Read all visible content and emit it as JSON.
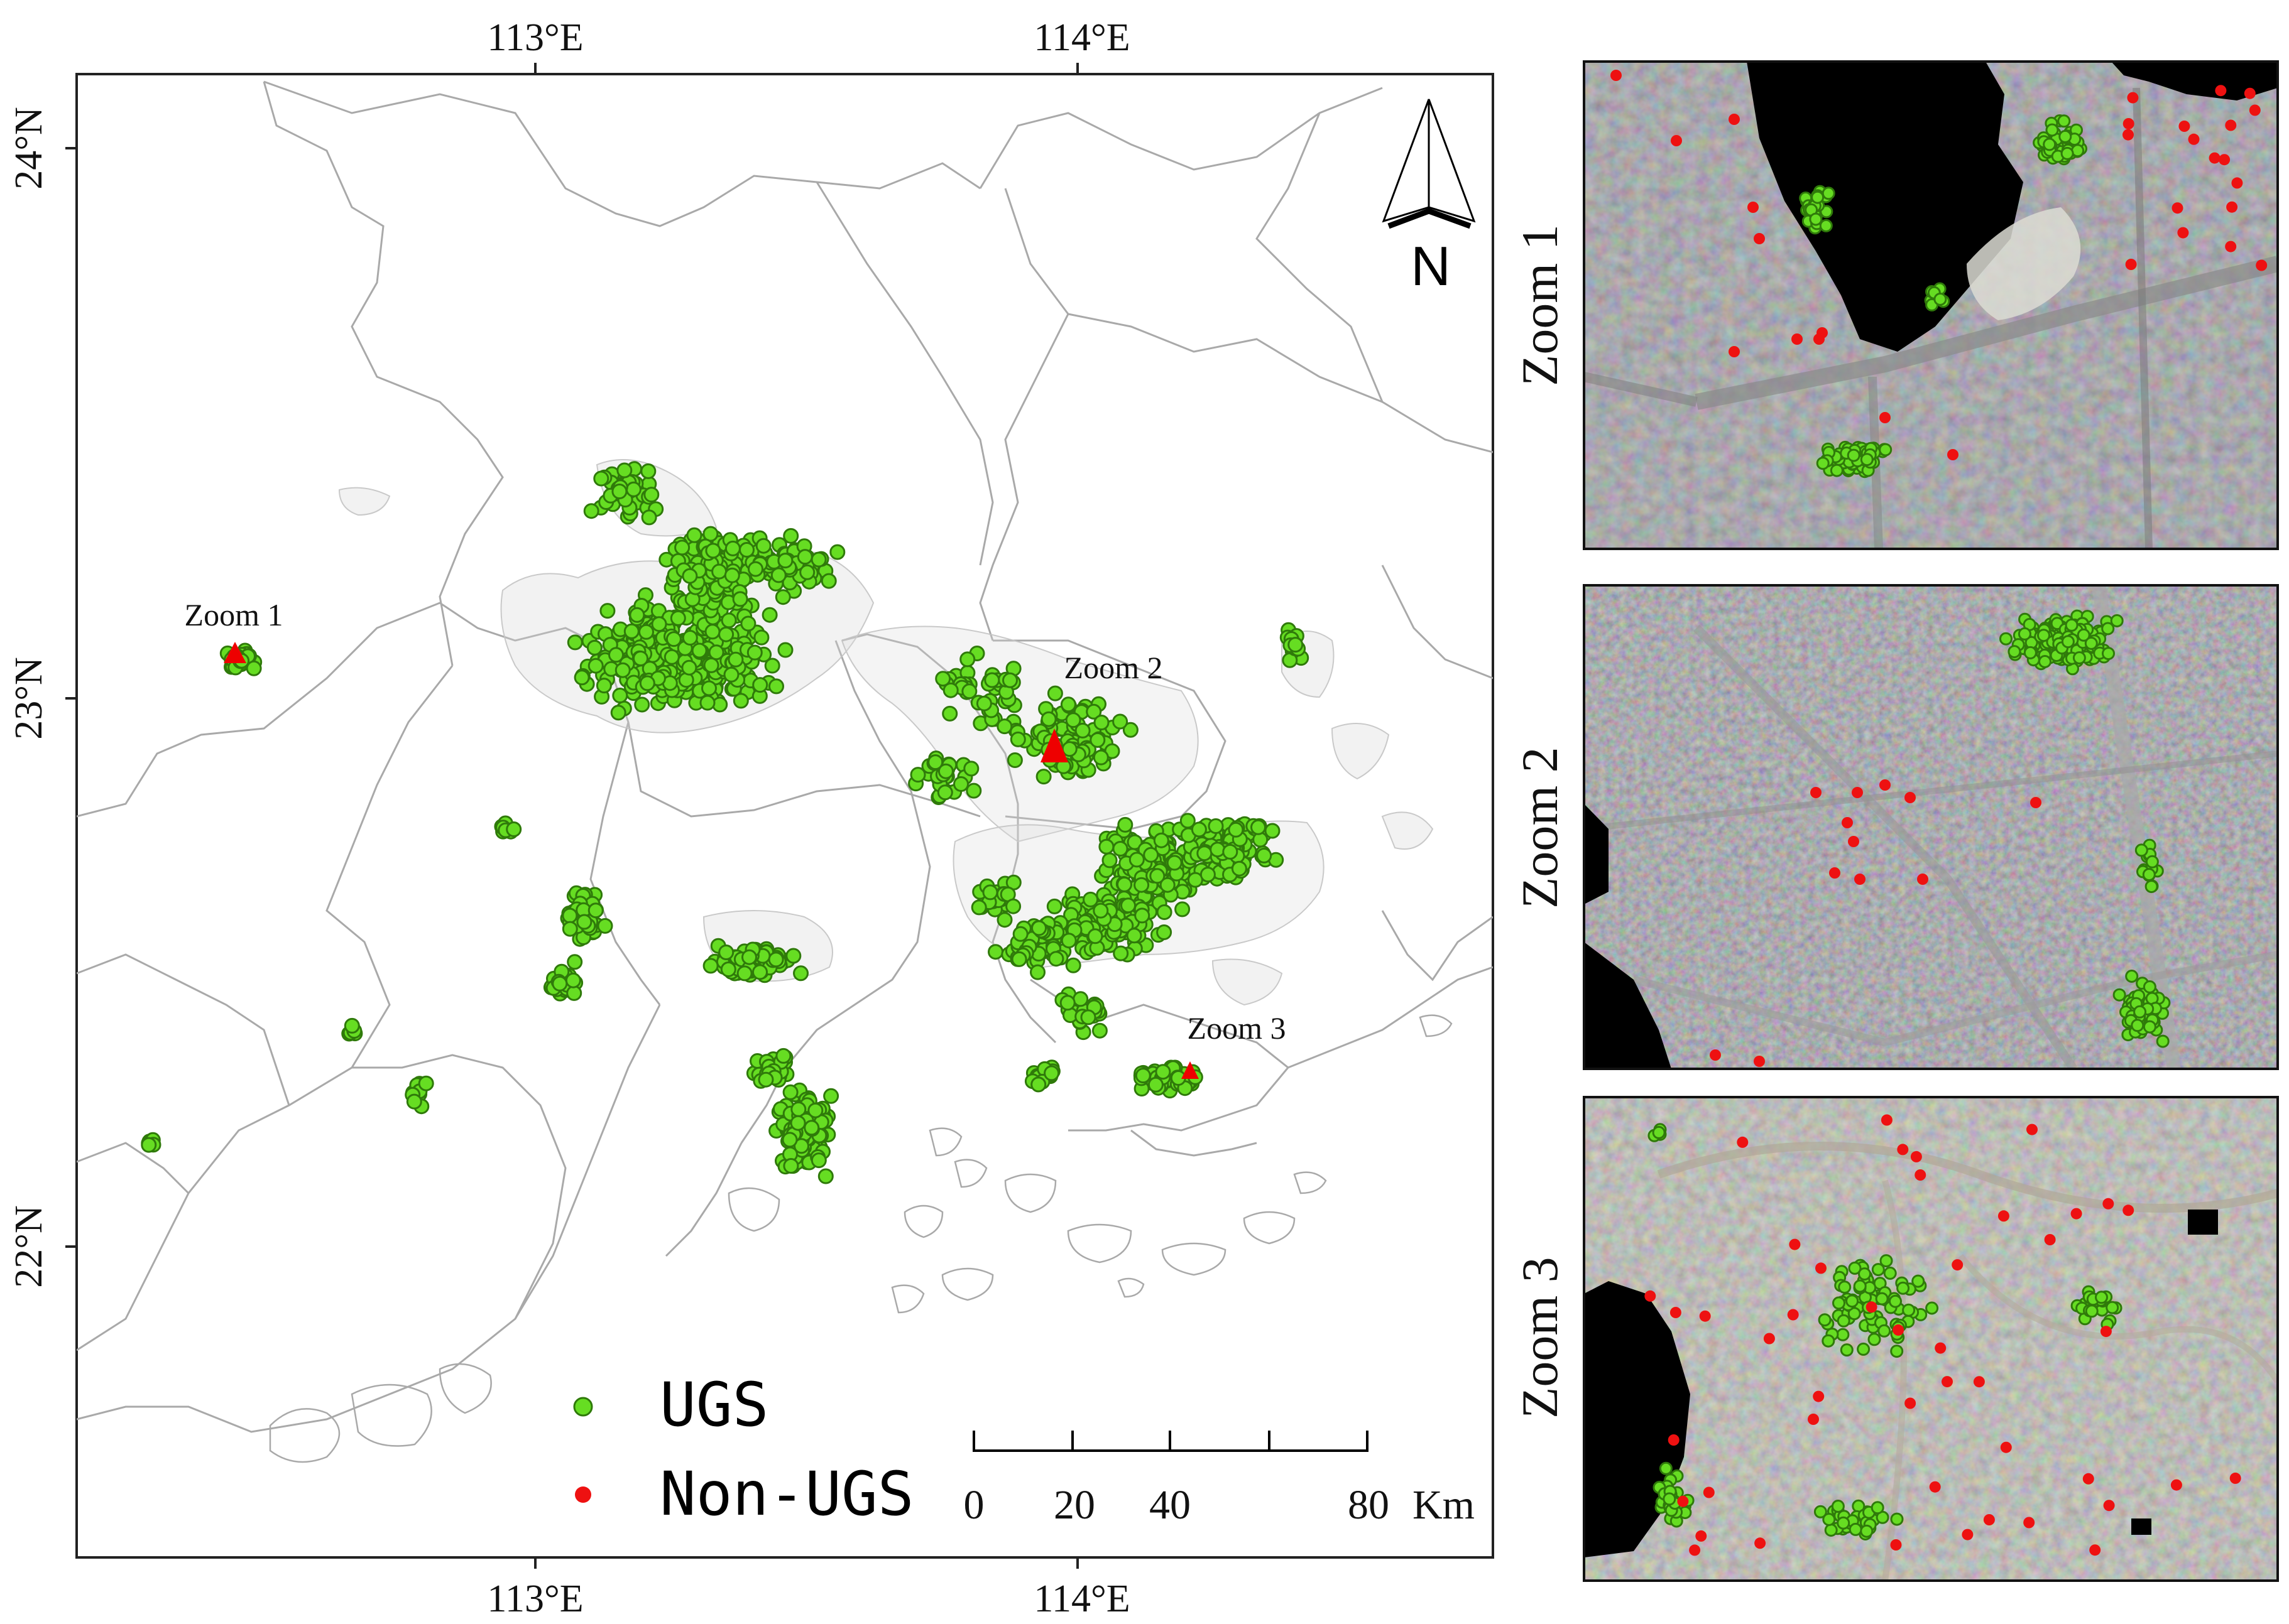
{
  "map": {
    "top_ticks": [
      "113°E",
      "114°E"
    ],
    "bottom_ticks": [
      "113°E",
      "114°E"
    ],
    "left_ticks": [
      "24°N",
      "23°N",
      "22°N"
    ],
    "north_label": "N",
    "zoom_markers": [
      "Zoom 1",
      "Zoom 2",
      "Zoom 3"
    ],
    "legend": [
      {
        "label": "UGS",
        "color": "#66dd22"
      },
      {
        "label": "Non-UGS",
        "color": "#ee1111"
      }
    ],
    "scale_bar": {
      "labels": [
        "0",
        "20",
        "40",
        "80"
      ],
      "unit": "Km"
    }
  },
  "panels": [
    {
      "label": "Zoom 1"
    },
    {
      "label": "Zoom 2"
    },
    {
      "label": "Zoom 3"
    }
  ],
  "colors": {
    "ugs_fill": "#66dd22",
    "ugs_stroke": "#2f7a0a",
    "non_ugs": "#ee1111",
    "boundary": "#a9a9a9",
    "urban": "#d6d6d6",
    "marker": "#ee0000"
  }
}
